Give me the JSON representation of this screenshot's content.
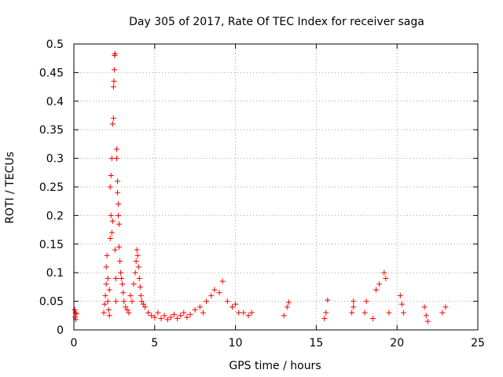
{
  "chart_data": {
    "type": "scatter",
    "title": "Day 305 of 2017, Rate Of TEC Index for receiver saga",
    "xlabel": "GPS time / hours",
    "ylabel": "ROTI / TECUs",
    "xlim": [
      0,
      25
    ],
    "ylim": [
      0,
      0.5
    ],
    "grid": true,
    "marker": "+",
    "marker_color": "#ff0000",
    "x_ticks": [
      0,
      5,
      10,
      15,
      20,
      25
    ],
    "x_tick_labels": [
      "0",
      "5",
      "10",
      "15",
      "20",
      "25"
    ],
    "y_ticks": [
      0,
      0.05,
      0.1,
      0.15,
      0.2,
      0.25,
      0.3,
      0.35,
      0.4,
      0.45,
      0.5
    ],
    "y_tick_labels": [
      "0",
      "0.05",
      "0.1",
      "0.15",
      "0.2",
      "0.25",
      "0.3",
      "0.35",
      "0.4",
      "0.45",
      "0.5"
    ],
    "points": [
      [
        0.05,
        0.035
      ],
      [
        0.08,
        0.022
      ],
      [
        0.1,
        0.03
      ],
      [
        0.12,
        0.018
      ],
      [
        0.15,
        0.028
      ],
      [
        1.85,
        0.03
      ],
      [
        1.9,
        0.045
      ],
      [
        1.95,
        0.06
      ],
      [
        2.0,
        0.08
      ],
      [
        2.0,
        0.11
      ],
      [
        2.05,
        0.13
      ],
      [
        2.1,
        0.09
      ],
      [
        2.1,
        0.05
      ],
      [
        2.15,
        0.035
      ],
      [
        2.2,
        0.025
      ],
      [
        2.2,
        0.07
      ],
      [
        2.25,
        0.16
      ],
      [
        2.25,
        0.25
      ],
      [
        2.3,
        0.27
      ],
      [
        2.3,
        0.2
      ],
      [
        2.35,
        0.3
      ],
      [
        2.35,
        0.17
      ],
      [
        2.4,
        0.36
      ],
      [
        2.4,
        0.19
      ],
      [
        2.45,
        0.425
      ],
      [
        2.45,
        0.37
      ],
      [
        2.48,
        0.435
      ],
      [
        2.5,
        0.455
      ],
      [
        2.52,
        0.48
      ],
      [
        2.55,
        0.483
      ],
      [
        2.55,
        0.14
      ],
      [
        2.6,
        0.09
      ],
      [
        2.6,
        0.05
      ],
      [
        2.65,
        0.316
      ],
      [
        2.65,
        0.3
      ],
      [
        2.7,
        0.26
      ],
      [
        2.7,
        0.24
      ],
      [
        2.75,
        0.22
      ],
      [
        2.75,
        0.2
      ],
      [
        2.8,
        0.185
      ],
      [
        2.8,
        0.145
      ],
      [
        2.85,
        0.12
      ],
      [
        2.9,
        0.1
      ],
      [
        2.95,
        0.09
      ],
      [
        3.0,
        0.08
      ],
      [
        3.05,
        0.065
      ],
      [
        3.1,
        0.05
      ],
      [
        3.2,
        0.04
      ],
      [
        3.3,
        0.035
      ],
      [
        3.4,
        0.03
      ],
      [
        3.5,
        0.06
      ],
      [
        3.6,
        0.05
      ],
      [
        3.7,
        0.08
      ],
      [
        3.8,
        0.1
      ],
      [
        3.85,
        0.12
      ],
      [
        3.9,
        0.14
      ],
      [
        3.95,
        0.13
      ],
      [
        4.0,
        0.11
      ],
      [
        4.05,
        0.09
      ],
      [
        4.1,
        0.075
      ],
      [
        4.15,
        0.06
      ],
      [
        4.2,
        0.05
      ],
      [
        4.3,
        0.045
      ],
      [
        4.4,
        0.04
      ],
      [
        4.6,
        0.03
      ],
      [
        4.8,
        0.025
      ],
      [
        5.0,
        0.022
      ],
      [
        5.2,
        0.03
      ],
      [
        5.4,
        0.02
      ],
      [
        5.6,
        0.025
      ],
      [
        5.8,
        0.018
      ],
      [
        6.0,
        0.022
      ],
      [
        6.2,
        0.027
      ],
      [
        6.4,
        0.02
      ],
      [
        6.6,
        0.025
      ],
      [
        6.8,
        0.03
      ],
      [
        7.0,
        0.022
      ],
      [
        7.2,
        0.027
      ],
      [
        7.5,
        0.035
      ],
      [
        7.8,
        0.04
      ],
      [
        8.0,
        0.03
      ],
      [
        8.2,
        0.05
      ],
      [
        8.5,
        0.06
      ],
      [
        8.7,
        0.07
      ],
      [
        9.0,
        0.065
      ],
      [
        9.2,
        0.085
      ],
      [
        9.5,
        0.05
      ],
      [
        9.8,
        0.04
      ],
      [
        10.0,
        0.045
      ],
      [
        10.2,
        0.03
      ],
      [
        10.5,
        0.03
      ],
      [
        10.8,
        0.025
      ],
      [
        11.0,
        0.03
      ],
      [
        13.0,
        0.025
      ],
      [
        13.2,
        0.04
      ],
      [
        13.3,
        0.048
      ],
      [
        15.5,
        0.02
      ],
      [
        15.6,
        0.03
      ],
      [
        15.7,
        0.052
      ],
      [
        17.2,
        0.03
      ],
      [
        17.3,
        0.04
      ],
      [
        17.3,
        0.05
      ],
      [
        18.0,
        0.03
      ],
      [
        18.1,
        0.05
      ],
      [
        18.5,
        0.02
      ],
      [
        18.7,
        0.07
      ],
      [
        18.9,
        0.08
      ],
      [
        19.2,
        0.1
      ],
      [
        19.3,
        0.09
      ],
      [
        19.5,
        0.03
      ],
      [
        20.2,
        0.06
      ],
      [
        20.3,
        0.045
      ],
      [
        20.4,
        0.03
      ],
      [
        21.7,
        0.04
      ],
      [
        21.8,
        0.025
      ],
      [
        21.9,
        0.015
      ],
      [
        22.8,
        0.03
      ],
      [
        23.0,
        0.04
      ]
    ]
  }
}
